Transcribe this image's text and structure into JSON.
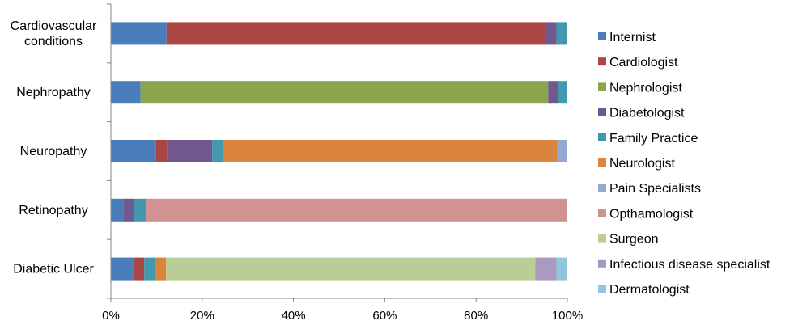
{
  "chart_data": {
    "type": "bar",
    "orientation": "horizontal",
    "stacked": "percent",
    "categories": [
      [
        "Cardiovascular",
        "conditions"
      ],
      [
        "Nephropathy"
      ],
      [
        "Neuropathy"
      ],
      [
        "Retinopathy"
      ],
      [
        "Diabetic Ulcer"
      ]
    ],
    "x_ticks": [
      "0%",
      "20%",
      "40%",
      "60%",
      "80%",
      "100%"
    ],
    "xlim": [
      0,
      100
    ],
    "grid": false,
    "legend_position": "right",
    "series": [
      {
        "name": "Internist",
        "color": "#4A7EBB",
        "values": [
          12.2,
          6.5,
          9.9,
          2.7,
          4.9
        ]
      },
      {
        "name": "Cardiologist",
        "color": "#AA4643",
        "values": [
          83.0,
          0,
          2.4,
          0,
          2.4
        ]
      },
      {
        "name": "Nephrologist",
        "color": "#89A54E",
        "values": [
          0,
          89.3,
          0,
          0,
          0
        ]
      },
      {
        "name": "Diabetologist",
        "color": "#71588F",
        "values": [
          2.4,
          2.2,
          9.9,
          2.4,
          0
        ]
      },
      {
        "name": "Family Practice",
        "color": "#4198AF",
        "values": [
          2.4,
          2.0,
          2.3,
          2.7,
          2.4
        ]
      },
      {
        "name": "Neurologist",
        "color": "#DB843D",
        "values": [
          0,
          0,
          73.3,
          0,
          2.4
        ]
      },
      {
        "name": "Pain Specialists",
        "color": "#93A9CF",
        "values": [
          0,
          0,
          2.2,
          0,
          0
        ]
      },
      {
        "name": "Opthamologist",
        "color": "#D19392",
        "values": [
          0,
          0,
          0,
          92.2,
          0
        ]
      },
      {
        "name": "Surgeon",
        "color": "#B9CD96",
        "values": [
          0,
          0,
          0,
          0,
          80.9
        ]
      },
      {
        "name": "Infectious disease specialist",
        "color": "#A99BBD",
        "values": [
          0,
          0,
          0,
          0,
          4.6
        ]
      },
      {
        "name": "Dermatologist",
        "color": "#92C5DB",
        "values": [
          0,
          0,
          0,
          0,
          2.4
        ]
      }
    ]
  }
}
